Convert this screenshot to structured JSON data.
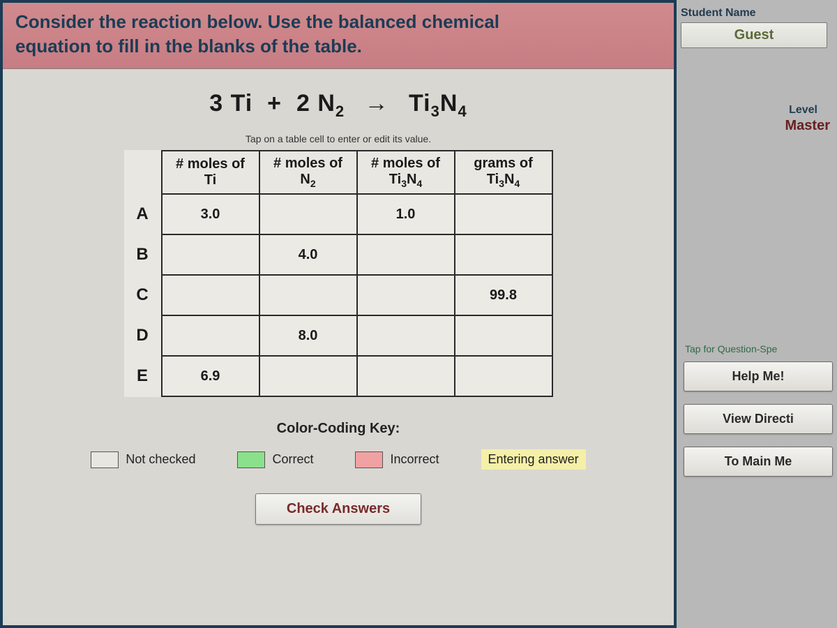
{
  "question": {
    "line1": "Consider the reaction below. Use the balanced chemical",
    "line2": "equation to fill in the blanks of the table."
  },
  "equation": {
    "coef1": "3",
    "species1": "Ti",
    "plus": "+",
    "coef2": "2",
    "species2": "N",
    "species2_sub": "2",
    "arrow": "→",
    "product": "Ti",
    "product_sub1": "3",
    "product_mid": "N",
    "product_sub2": "4"
  },
  "hint": "Tap on a table cell to enter or edit its value.",
  "table": {
    "headers": {
      "c1_line1": "# moles of",
      "c1_line2": "Ti",
      "c2_line1": "# moles of",
      "c2_line2": "N",
      "c2_sub": "2",
      "c3_line1": "# moles of",
      "c3_line2": "Ti",
      "c3_sub1": "3",
      "c3_mid": "N",
      "c3_sub2": "4",
      "c4_line1": "grams of",
      "c4_line2": "Ti",
      "c4_sub1": "3",
      "c4_mid": "N",
      "c4_sub2": "4"
    },
    "rows": [
      {
        "label": "A",
        "c1": "3.0",
        "c2": "",
        "c3": "1.0",
        "c4": ""
      },
      {
        "label": "B",
        "c1": "",
        "c2": "4.0",
        "c3": "",
        "c4": ""
      },
      {
        "label": "C",
        "c1": "",
        "c2": "",
        "c3": "",
        "c4": "99.8"
      },
      {
        "label": "D",
        "c1": "",
        "c2": "8.0",
        "c3": "",
        "c4": ""
      },
      {
        "label": "E",
        "c1": "6.9",
        "c2": "",
        "c3": "",
        "c4": ""
      }
    ]
  },
  "key": {
    "title": "Color-Coding Key:",
    "not_checked": "Not checked",
    "correct": "Correct",
    "incorrect": "Incorrect",
    "entering": "Entering answer",
    "colors": {
      "not_checked": "#e8e6e1",
      "correct": "#8be08b",
      "incorrect": "#f0a2a2",
      "entering": "#f5f0a8"
    }
  },
  "buttons": {
    "check": "Check Answers",
    "help": "Help Me!",
    "directions": "View Directi",
    "main_menu": "To Main Me"
  },
  "side": {
    "student_label": "Student Name",
    "student_value": "Guest",
    "level_label": "Level",
    "level_value": "Master",
    "tap_help": "Tap for Question-Spe"
  },
  "style": {
    "question_bg": "#cd858a",
    "frame_border": "#1b3c55",
    "page_bg": "#d9d7d2",
    "side_bg": "#b8b8b8"
  }
}
